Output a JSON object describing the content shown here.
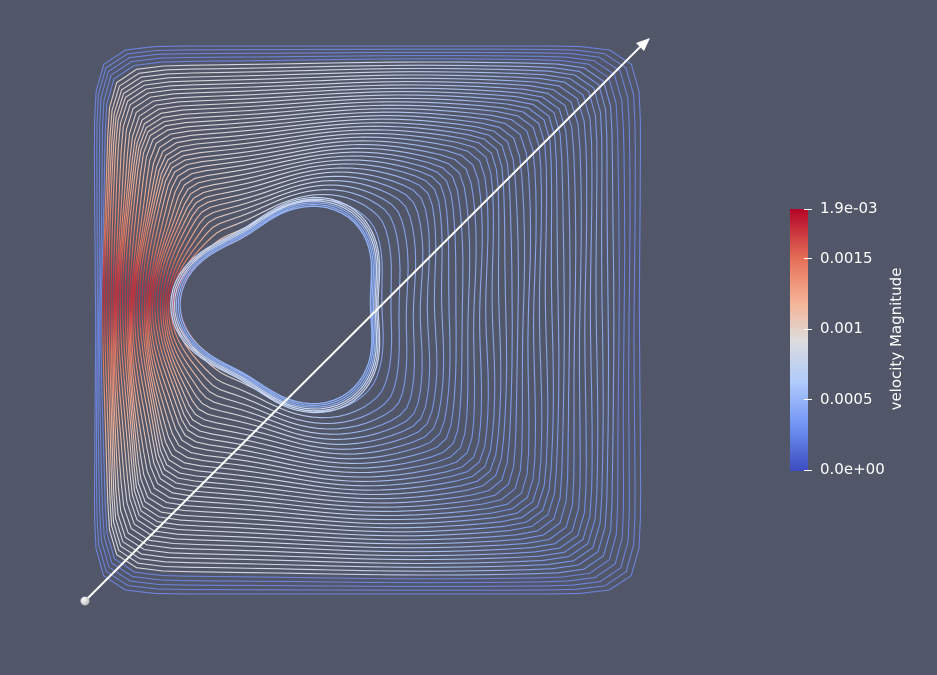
{
  "scene": {
    "background": "#525669",
    "colormap": [
      "#3b4cc0",
      "#7396f5",
      "#b0cbfc",
      "#dddcdc",
      "#f6b497",
      "#e7745b",
      "#b40426"
    ],
    "probe_line": {
      "color": "#ffffff",
      "handle": "sphere"
    }
  },
  "legend": {
    "title": "velocity Magnitude",
    "ticks": [
      {
        "label": "1.9e-03",
        "value": 0.0019
      },
      {
        "label": "0.0015",
        "value": 0.0015
      },
      {
        "label": "0.001",
        "value": 0.001
      },
      {
        "label": "0.0005",
        "value": 0.0005
      },
      {
        "label": "0.0e+00",
        "value": 0.0
      }
    ],
    "range": [
      0,
      0.0019
    ]
  }
}
